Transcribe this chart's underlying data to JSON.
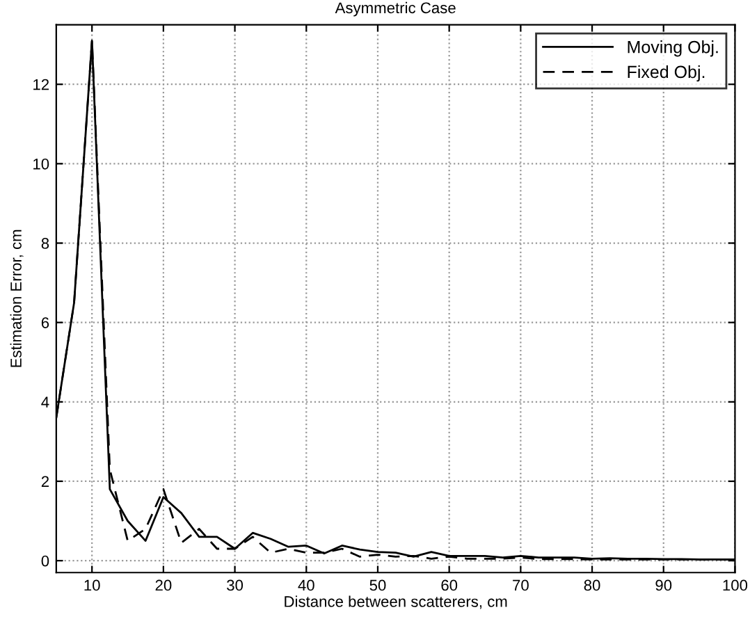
{
  "chart_data": {
    "type": "line",
    "title": "Asymmetric Case",
    "xlabel": "Distance between scatterers, cm",
    "ylabel": "Estimation Error, cm",
    "x": [
      5,
      7.5,
      10,
      12.5,
      15,
      17.5,
      20,
      22.5,
      25,
      27.5,
      30,
      32.5,
      35,
      37.5,
      40,
      42.5,
      45,
      47.5,
      50,
      52.5,
      55,
      57.5,
      60,
      62.5,
      65,
      67.5,
      70,
      72.5,
      75,
      77.5,
      80,
      82.5,
      85,
      87.5,
      90,
      92.5,
      95,
      97.5,
      100
    ],
    "series": [
      {
        "name": "Moving Obj.",
        "color": "#000000",
        "line_style": "solid",
        "values": [
          3.6,
          6.5,
          13.1,
          1.8,
          1.0,
          0.5,
          1.6,
          1.2,
          0.6,
          0.6,
          0.3,
          0.7,
          0.55,
          0.35,
          0.38,
          0.18,
          0.38,
          0.28,
          0.22,
          0.2,
          0.1,
          0.22,
          0.12,
          0.12,
          0.12,
          0.08,
          0.12,
          0.08,
          0.08,
          0.08,
          0.05,
          0.06,
          0.05,
          0.05,
          0.04,
          0.04,
          0.03,
          0.03,
          0.03
        ]
      },
      {
        "name": "Fixed Obj.",
        "color": "#000000",
        "line_style": "dashed",
        "values": [
          3.6,
          6.5,
          13.1,
          2.3,
          0.5,
          0.8,
          1.8,
          0.45,
          0.8,
          0.3,
          0.3,
          0.6,
          0.2,
          0.3,
          0.2,
          0.2,
          0.3,
          0.1,
          0.15,
          0.1,
          0.12,
          0.05,
          0.1,
          0.05,
          0.05,
          0.05,
          0.08,
          0.04,
          0.04,
          0.04,
          0.03,
          0.03,
          0.03,
          0.03,
          0.03,
          0.03,
          0.03,
          0.03,
          0.03
        ]
      }
    ],
    "xlim": [
      5,
      100
    ],
    "ylim": [
      -0.3,
      13.5
    ],
    "xticks": [
      10,
      20,
      30,
      40,
      50,
      60,
      70,
      80,
      90,
      100
    ],
    "yticks": [
      0,
      2,
      4,
      6,
      8,
      10,
      12
    ],
    "grid": true,
    "legend": "top right"
  }
}
